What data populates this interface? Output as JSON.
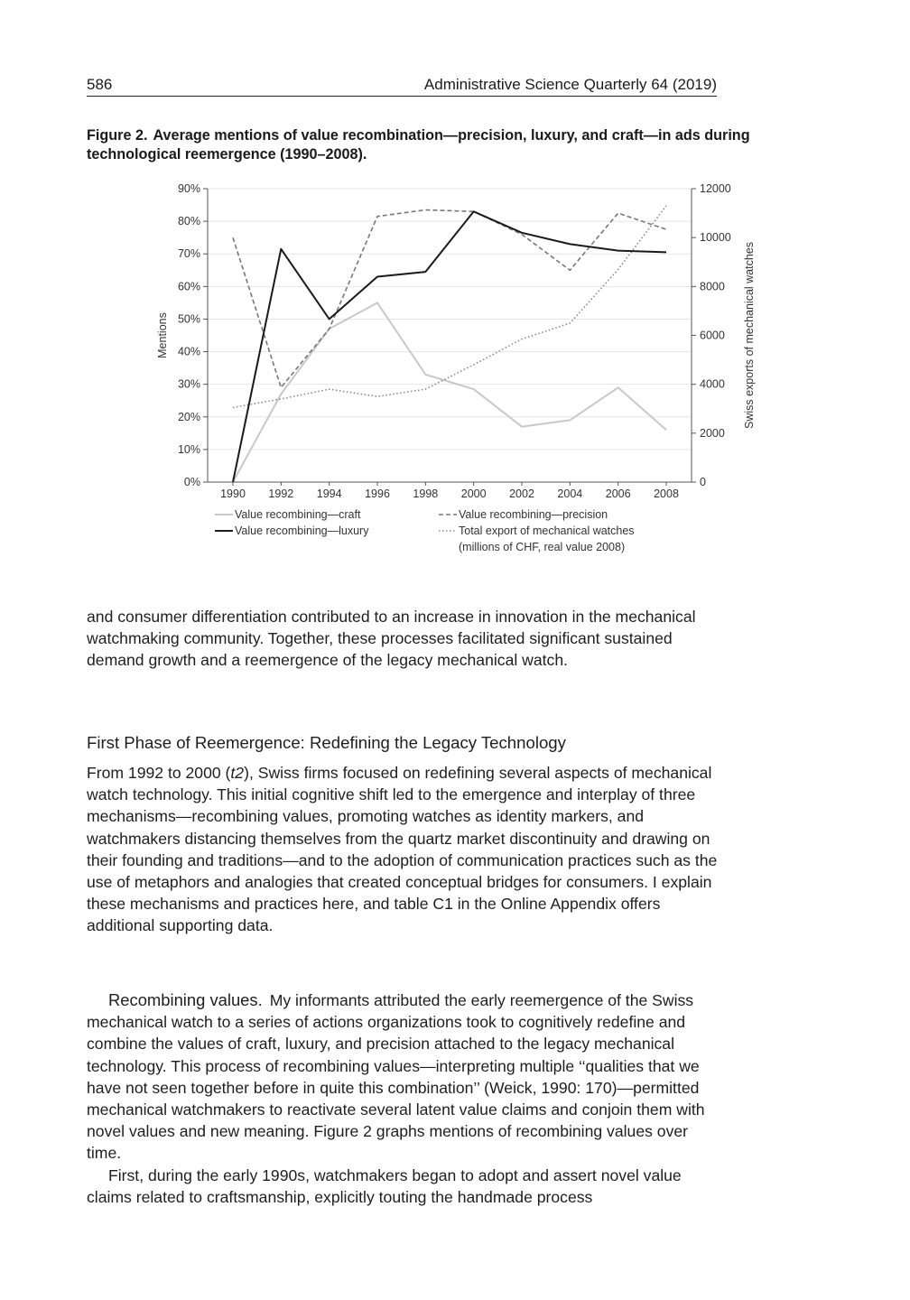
{
  "header": {
    "page_number": "586",
    "journal": "Administrative Science Quarterly 64 (2019)"
  },
  "figure": {
    "label": "Figure 2.",
    "caption": "Average mentions of value recombination—precision, luxury, and craft—in ads during technological reemergence (1990–2008)."
  },
  "chart_data": {
    "type": "line",
    "title": "",
    "x": [
      1990,
      1992,
      1994,
      1996,
      1998,
      2000,
      2002,
      2004,
      2006,
      2008
    ],
    "x_tick_labels": [
      "1990",
      "1992",
      "1994",
      "1996",
      "1998",
      "2000",
      "2002",
      "2004",
      "2006",
      "2008"
    ],
    "ylabel": "Mentions",
    "ylim": [
      0,
      90
    ],
    "y_tick_labels": [
      "0%",
      "10%",
      "20%",
      "30%",
      "40%",
      "50%",
      "60%",
      "70%",
      "80%",
      "90%"
    ],
    "y2label": "Swiss exports of mechanical watches",
    "y2lim": [
      0,
      12000
    ],
    "y2_tick_labels": [
      "0",
      "2000",
      "4000",
      "6000",
      "8000",
      "10000",
      "12000"
    ],
    "grid": true,
    "legend_position": "bottom",
    "series": [
      {
        "name": "Value recombining—craft",
        "axis": "left",
        "style": "solid-light",
        "color": "#c8c8c8",
        "values": [
          0,
          27,
          47,
          55,
          33,
          28.5,
          17,
          19,
          29,
          16
        ]
      },
      {
        "name": "Value recombining—precision",
        "axis": "left",
        "style": "dashed",
        "color": "#777777",
        "values": [
          75,
          29,
          47,
          81.5,
          83.5,
          83,
          76,
          65,
          82.5,
          77.5
        ]
      },
      {
        "name": "Value recombining—luxury",
        "axis": "left",
        "style": "solid-dark",
        "color": "#1a1a1a",
        "values": [
          0,
          71.5,
          50,
          63,
          64.5,
          83,
          76.5,
          73,
          71,
          70.5
        ]
      },
      {
        "name": "Total export of mechanical watches (millions of CHF, real value 2008)",
        "axis": "right",
        "style": "dotted",
        "color": "#888888",
        "values": [
          3050,
          3400,
          3800,
          3500,
          3800,
          4800,
          5850,
          6500,
          8700,
          11300
        ]
      }
    ],
    "legend": [
      {
        "label_lines": [
          "Value recombining—craft"
        ],
        "style": "solid-light"
      },
      {
        "label_lines": [
          "Value recombining—precision"
        ],
        "style": "dashed"
      },
      {
        "label_lines": [
          "Value recombining—luxury"
        ],
        "style": "solid-dark"
      },
      {
        "label_lines": [
          "Total export of mechanical watches",
          "(millions of CHF, real value 2008)"
        ],
        "style": "dotted"
      }
    ]
  },
  "body": {
    "intro_paragraph": "and consumer differentiation contributed to an increase in innovation in the mechanical watchmaking community. Together, these processes facilitated significant sustained demand growth and a reemergence of the legacy mechanical watch.",
    "section_heading": "First Phase of Reemergence: Redefining the Legacy Technology",
    "section_p1_a": "From 1992 to 2000 (",
    "section_p1_italic": "t2",
    "section_p1_b": "), Swiss firms focused on redefining several aspects of mechanical watch technology. This initial cognitive shift led to the emergence and interplay of three mechanisms—recombining values, promoting watches as identity markers, and watchmakers distancing themselves from the quartz market discontinuity and drawing on their founding and traditions—and to the adoption of communication practices such as the use of metaphors and analogies that created conceptual bridges for consumers. I explain these mechanisms and practices here, and table C1 in the Online Appendix offers additional supporting data.",
    "subhead": "Recombining values.",
    "recombining_p": "My informants attributed the early reemergence of the Swiss mechanical watch to a series of actions organizations took to cognitively redefine and combine the values of craft, luxury, and precision attached to the legacy mechanical technology. This process of recombining values—interpreting multiple ‘‘qualities that we have not seen together before in quite this combination’’ (Weick, 1990: 170)—permitted mechanical watchmakers to reactivate several latent value claims and conjoin them with novel values and new meaning. Figure 2 graphs mentions of recombining values over time.",
    "first_p": "First, during the early 1990s, watchmakers began to adopt and assert novel value claims related to craftsmanship, explicitly touting the handmade process"
  }
}
